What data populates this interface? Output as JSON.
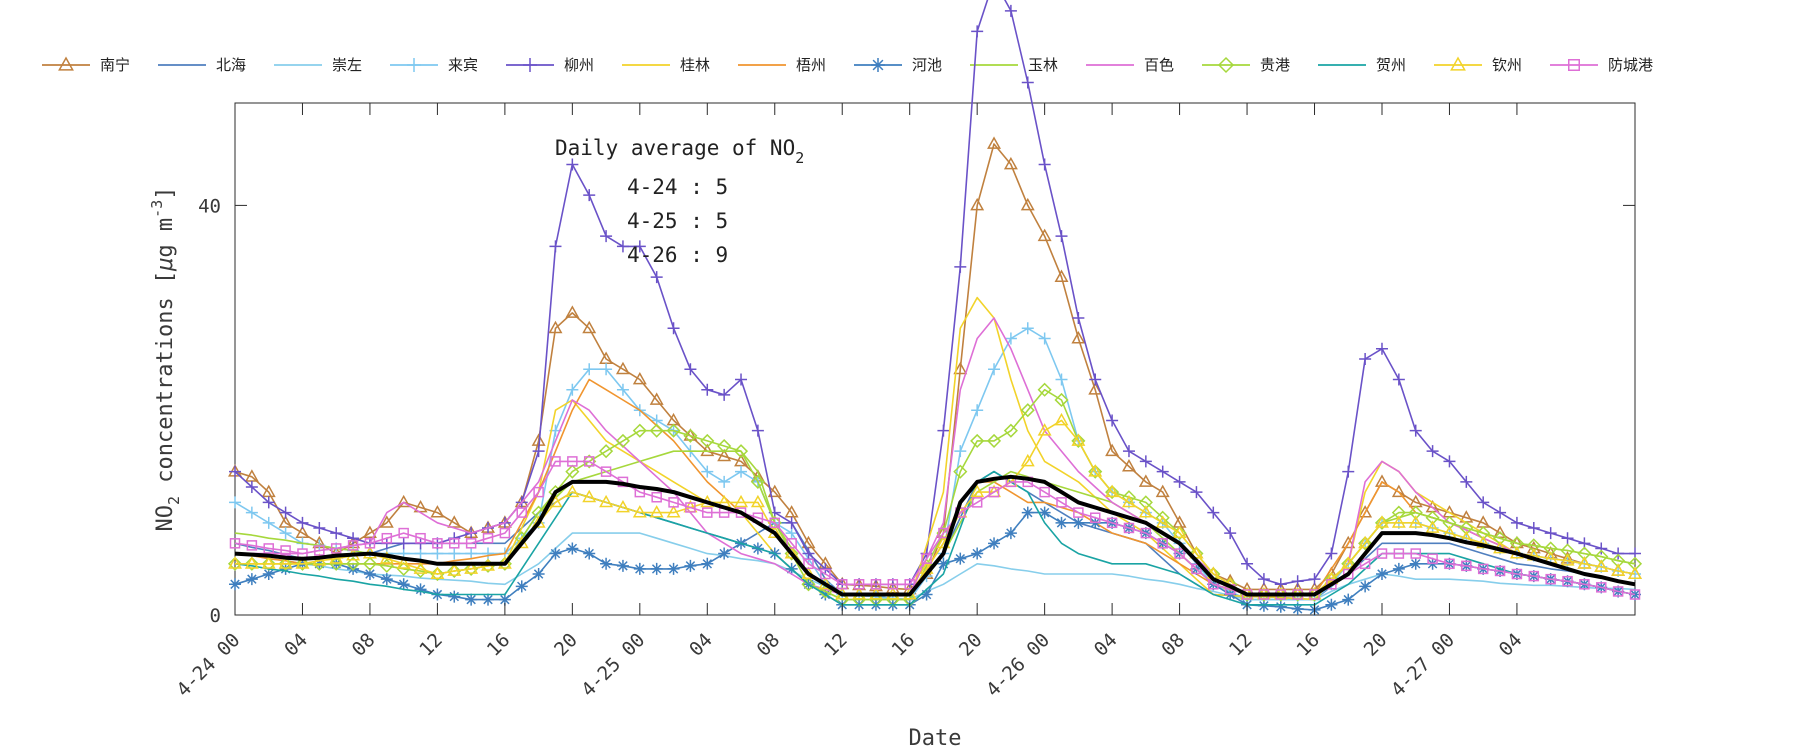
{
  "chart_data": {
    "type": "line",
    "xlabel": "Date",
    "ylabel": "NO2 concentrations [μg m-3]",
    "ylabel_parts": {
      "pre": "NO",
      "sub": "2",
      "mid": " concentrations [",
      "mu": "μ",
      "g": "g m",
      "sup": "-3",
      "end": "]"
    },
    "ylim": [
      0,
      50
    ],
    "yticks": [
      0,
      40
    ],
    "xlim": [
      0,
      83
    ],
    "xticks": [
      {
        "pos": 0,
        "label": "4-24 00"
      },
      {
        "pos": 4,
        "label": "04"
      },
      {
        "pos": 8,
        "label": "08"
      },
      {
        "pos": 12,
        "label": "12"
      },
      {
        "pos": 16,
        "label": "16"
      },
      {
        "pos": 20,
        "label": "20"
      },
      {
        "pos": 24,
        "label": "4-25 00"
      },
      {
        "pos": 28,
        "label": "04"
      },
      {
        "pos": 32,
        "label": "08"
      },
      {
        "pos": 36,
        "label": "12"
      },
      {
        "pos": 40,
        "label": "16"
      },
      {
        "pos": 44,
        "label": "20"
      },
      {
        "pos": 48,
        "label": "4-26 00"
      },
      {
        "pos": 52,
        "label": "04"
      },
      {
        "pos": 56,
        "label": "08"
      },
      {
        "pos": 60,
        "label": "12"
      },
      {
        "pos": 64,
        "label": "16"
      },
      {
        "pos": 68,
        "label": "20"
      },
      {
        "pos": 72,
        "label": "4-27 00"
      },
      {
        "pos": 76,
        "label": "04"
      }
    ],
    "legend_position": "top",
    "annotation": {
      "title_pre": "Daily average of NO",
      "title_sub": "2",
      "lines": [
        "4-24 : 5",
        "4-25 : 5",
        "4-26 : 9"
      ]
    },
    "series": [
      {
        "name": "南宁",
        "color": "#c0813f",
        "marker": "triangle"
      },
      {
        "name": "北海",
        "color": "#4f7fbf",
        "marker": "none"
      },
      {
        "name": "崇左",
        "color": "#87ceeb",
        "marker": "none"
      },
      {
        "name": "来宾",
        "color": "#7ec8f0",
        "marker": "plus"
      },
      {
        "name": "柳州",
        "color": "#6a52c8",
        "marker": "plus"
      },
      {
        "name": "桂林",
        "color": "#f2d32a",
        "marker": "none"
      },
      {
        "name": "梧州",
        "color": "#f0952f",
        "marker": "none"
      },
      {
        "name": "河池",
        "color": "#3f7fbf",
        "marker": "asterisk"
      },
      {
        "name": "玉林",
        "color": "#a6d83c",
        "marker": "none"
      },
      {
        "name": "百色",
        "color": "#de6fd6",
        "marker": "none"
      },
      {
        "name": "贵港",
        "color": "#a6d83c",
        "marker": "diamond"
      },
      {
        "name": "贺州",
        "color": "#1aa4a4",
        "marker": "none"
      },
      {
        "name": "钦州",
        "color": "#f2d32a",
        "marker": "triangle"
      },
      {
        "name": "防城港",
        "color": "#de6fd6",
        "marker": "square"
      }
    ],
    "mean_line": {
      "color": "#000000"
    }
  }
}
